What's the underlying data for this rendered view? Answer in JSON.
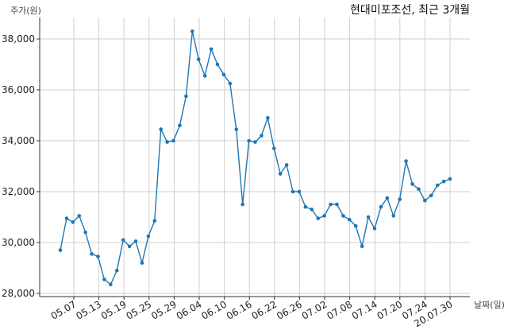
{
  "chart_data": {
    "type": "line",
    "title": "현대미포조선, 최근 3개월",
    "ylabel": "주가(원)",
    "xlabel": "날짜(일)",
    "ylim": [
      28000,
      39000
    ],
    "yticks": [
      28000,
      30000,
      32000,
      34000,
      36000,
      38000
    ],
    "ytick_labels": [
      "28,000",
      "30,000",
      "32,000",
      "34,000",
      "36,000",
      "38,000"
    ],
    "grid": true,
    "xtick_labels": [
      "05.07",
      "05.13",
      "05.19",
      "05.25",
      "05.29",
      "06.04",
      "06.10",
      "06.16",
      "06.22",
      "06.26",
      "07.02",
      "07.08",
      "07.14",
      "07.20",
      "07.24",
      "20.07.30"
    ],
    "series": [
      {
        "color": "#1f77b4",
        "values": [
          29700,
          30950,
          30800,
          31050,
          30400,
          29550,
          29450,
          28550,
          28350,
          28900,
          30100,
          29850,
          30050,
          29200,
          30250,
          30850,
          34450,
          33950,
          34000,
          34600,
          35750,
          38300,
          37200,
          36550,
          37600,
          37000,
          36600,
          36250,
          34450,
          31500,
          34000,
          33950,
          34200,
          34900,
          33700,
          32700,
          33050,
          32000,
          32000,
          31400,
          31300,
          30950,
          31050,
          31500,
          31500,
          31050,
          30900,
          30650,
          29850,
          31000,
          30550,
          31400,
          31750,
          31050,
          31700,
          33200,
          32300,
          32100,
          31650,
          31850,
          32250,
          32400,
          32500
        ]
      }
    ]
  }
}
